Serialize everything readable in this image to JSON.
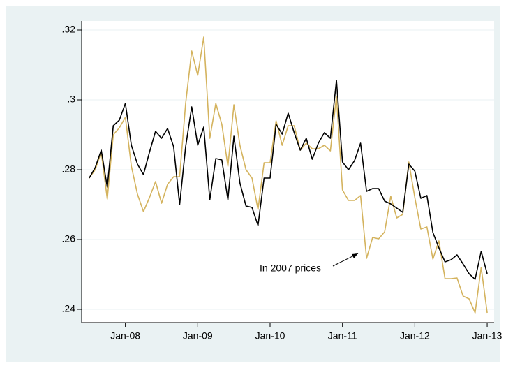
{
  "chart_data": {
    "type": "line",
    "annotation": "In 2007 prices",
    "x": [
      2007.5,
      2007.583,
      2007.667,
      2007.75,
      2007.833,
      2007.917,
      2008,
      2008.083,
      2008.167,
      2008.25,
      2008.333,
      2008.417,
      2008.5,
      2008.583,
      2008.667,
      2008.75,
      2008.833,
      2008.917,
      2009,
      2009.083,
      2009.167,
      2009.25,
      2009.333,
      2009.417,
      2009.5,
      2009.583,
      2009.667,
      2009.75,
      2009.833,
      2009.917,
      2010,
      2010.083,
      2010.167,
      2010.25,
      2010.333,
      2010.417,
      2010.5,
      2010.583,
      2010.667,
      2010.75,
      2010.833,
      2010.917,
      2011,
      2011.083,
      2011.167,
      2011.25,
      2011.333,
      2011.417,
      2011.5,
      2011.583,
      2011.667,
      2011.75,
      2011.833,
      2011.917,
      2012,
      2012.083,
      2012.167,
      2012.25,
      2012.333,
      2012.417,
      2012.5,
      2012.583,
      2012.667,
      2012.75,
      2012.833,
      2012.917,
      2013
    ],
    "series": [
      {
        "color": "#d4b35e",
        "values": [
          0.2776,
          0.28,
          0.285,
          0.2716,
          0.29,
          0.292,
          0.295,
          0.281,
          0.273,
          0.268,
          0.272,
          0.2766,
          0.2704,
          0.2758,
          0.278,
          0.278,
          0.299,
          0.314,
          0.307,
          0.318,
          0.289,
          0.299,
          0.293,
          0.281,
          0.2986,
          0.287,
          0.28,
          0.2776,
          0.2686,
          0.282,
          0.282,
          0.294,
          0.287,
          0.2926,
          0.2926,
          0.2856,
          0.2876,
          0.286,
          0.286,
          0.287,
          0.2854,
          0.301,
          0.2742,
          0.2712,
          0.2712,
          0.2726,
          0.2546,
          0.2606,
          0.2602,
          0.2622,
          0.2724,
          0.2662,
          0.2672,
          0.2822,
          0.272,
          0.263,
          0.2636,
          0.2544,
          0.2596,
          0.2488,
          0.2488,
          0.249,
          0.2438,
          0.243,
          0.239,
          0.252,
          0.239
        ]
      },
      {
        "color": "#000000",
        "values": [
          0.2776,
          0.2806,
          0.2856,
          0.275,
          0.2926,
          0.2942,
          0.299,
          0.287,
          0.2816,
          0.2786,
          0.285,
          0.291,
          0.289,
          0.2918,
          0.2866,
          0.27,
          0.2866,
          0.298,
          0.287,
          0.2922,
          0.2714,
          0.2832,
          0.2828,
          0.2714,
          0.2896,
          0.2762,
          0.2696,
          0.2692,
          0.264,
          0.2776,
          0.2776,
          0.293,
          0.2902,
          0.2962,
          0.2906,
          0.2856,
          0.289,
          0.283,
          0.2876,
          0.2906,
          0.289,
          0.3056,
          0.2822,
          0.28,
          0.2826,
          0.2876,
          0.2738,
          0.2746,
          0.2746,
          0.271,
          0.2702,
          0.269,
          0.2678,
          0.2816,
          0.2796,
          0.2718,
          0.2726,
          0.262,
          0.2576,
          0.2536,
          0.2542,
          0.2556,
          0.253,
          0.2502,
          0.2486,
          0.2566,
          0.2502
        ]
      }
    ],
    "xlim": [
      2007.396,
      2013.096
    ],
    "xticks": [
      {
        "value": 2008,
        "label": "Jan-08"
      },
      {
        "value": 2009,
        "label": "Jan-09"
      },
      {
        "value": 2010,
        "label": "Jan-10"
      },
      {
        "value": 2011,
        "label": "Jan-11"
      },
      {
        "value": 2012,
        "label": "Jan-12"
      },
      {
        "value": 2013,
        "label": "Jan-13"
      }
    ],
    "ylim": [
      0.2362,
      0.3226
    ],
    "yticks": [
      {
        "value": 0.24,
        "label": ".24"
      },
      {
        "value": 0.26,
        "label": ".26"
      },
      {
        "value": 0.28,
        "label": ".28"
      },
      {
        "value": 0.3,
        "label": ".3"
      },
      {
        "value": 0.32,
        "label": ".32"
      }
    ],
    "grid": true
  }
}
